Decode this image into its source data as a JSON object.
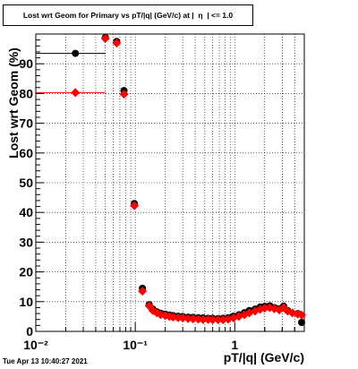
{
  "header": {
    "title": "Lost wrt Geom for Primary vs pT/|q| (GeV/c) at |  η  | <= 1.0"
  },
  "footer": {
    "timestamp": "Tue Apr 13 10:40:27 2021"
  },
  "colors": {
    "series_black": "#000000",
    "series_red": "#ff0000",
    "grid": "#000000"
  },
  "chart_data": {
    "type": "scatter",
    "title": "Lost wrt Geom for Primary vs pT/|q| (GeV/c) at |  η  | <= 1.0",
    "xlabel": "pT/|q| (GeV/c)",
    "ylabel": "Lost wrt Geom (%)",
    "xscale": "log",
    "xlim": [
      0.01,
      5.0
    ],
    "ylim": [
      0,
      100
    ],
    "x_tick_labels": [
      "10⁻²",
      "10⁻¹",
      "1"
    ],
    "y_tick_labels": [
      "0",
      "10",
      "20",
      "30",
      "40",
      "50",
      "60",
      "70",
      "80",
      "90"
    ],
    "grid": true,
    "legend": "none",
    "series": [
      {
        "marker": "circle",
        "color": "#000000",
        "points": [
          {
            "x": 0.025,
            "y": 93.5,
            "xerr": [
              0.01,
              0.05
            ]
          },
          {
            "x": 0.05,
            "y": 98.8
          },
          {
            "x": 0.065,
            "y": 97.5
          },
          {
            "x": 0.077,
            "y": 81.0
          },
          {
            "x": 0.098,
            "y": 43.0
          },
          {
            "x": 0.118,
            "y": 14.5
          },
          {
            "x": 0.138,
            "y": 9.0
          },
          {
            "x": 0.15,
            "y": 7.5
          },
          {
            "x": 0.165,
            "y": 6.6
          },
          {
            "x": 0.18,
            "y": 6.1
          },
          {
            "x": 0.2,
            "y": 5.8
          },
          {
            "x": 0.22,
            "y": 5.5
          },
          {
            "x": 0.24,
            "y": 5.3
          },
          {
            "x": 0.27,
            "y": 5.1
          },
          {
            "x": 0.3,
            "y": 5.0
          },
          {
            "x": 0.34,
            "y": 4.8
          },
          {
            "x": 0.38,
            "y": 4.7
          },
          {
            "x": 0.43,
            "y": 4.6
          },
          {
            "x": 0.48,
            "y": 4.5
          },
          {
            "x": 0.54,
            "y": 4.4
          },
          {
            "x": 0.6,
            "y": 4.4
          },
          {
            "x": 0.68,
            "y": 4.3
          },
          {
            "x": 0.76,
            "y": 4.4
          },
          {
            "x": 0.86,
            "y": 4.6
          },
          {
            "x": 0.97,
            "y": 5.1
          },
          {
            "x": 1.1,
            "y": 5.6
          },
          {
            "x": 1.25,
            "y": 6.3
          },
          {
            "x": 1.4,
            "y": 7.0
          },
          {
            "x": 1.6,
            "y": 7.5
          },
          {
            "x": 1.8,
            "y": 8.2
          },
          {
            "x": 2.0,
            "y": 8.4
          },
          {
            "x": 2.25,
            "y": 8.6
          },
          {
            "x": 2.5,
            "y": 8.0
          },
          {
            "x": 2.8,
            "y": 7.6
          },
          {
            "x": 3.1,
            "y": 8.5
          },
          {
            "x": 3.4,
            "y": 7.0
          },
          {
            "x": 4.3,
            "y": 6.0
          },
          {
            "x": 4.7,
            "y": 3.0
          }
        ]
      },
      {
        "marker": "diamond",
        "color": "#ff0000",
        "points": [
          {
            "x": 0.025,
            "y": 80.3,
            "xerr": [
              0.01,
              0.05
            ]
          },
          {
            "x": 0.05,
            "y": 98.5
          },
          {
            "x": 0.065,
            "y": 97.0
          },
          {
            "x": 0.077,
            "y": 79.8
          },
          {
            "x": 0.098,
            "y": 42.3
          },
          {
            "x": 0.118,
            "y": 13.5
          },
          {
            "x": 0.138,
            "y": 8.6
          },
          {
            "x": 0.15,
            "y": 7.0
          },
          {
            "x": 0.165,
            "y": 6.2
          },
          {
            "x": 0.18,
            "y": 5.6
          },
          {
            "x": 0.2,
            "y": 5.3
          },
          {
            "x": 0.22,
            "y": 5.0
          },
          {
            "x": 0.24,
            "y": 4.8
          },
          {
            "x": 0.27,
            "y": 4.6
          },
          {
            "x": 0.3,
            "y": 4.5
          },
          {
            "x": 0.34,
            "y": 4.3
          },
          {
            "x": 0.38,
            "y": 4.2
          },
          {
            "x": 0.43,
            "y": 4.1
          },
          {
            "x": 0.48,
            "y": 4.0
          },
          {
            "x": 0.54,
            "y": 4.0
          },
          {
            "x": 0.6,
            "y": 3.9
          },
          {
            "x": 0.68,
            "y": 3.9
          },
          {
            "x": 0.76,
            "y": 3.9
          },
          {
            "x": 0.86,
            "y": 4.1
          },
          {
            "x": 0.97,
            "y": 4.5
          },
          {
            "x": 1.1,
            "y": 5.0
          },
          {
            "x": 1.25,
            "y": 5.6
          },
          {
            "x": 1.4,
            "y": 6.2
          },
          {
            "x": 1.6,
            "y": 6.8
          },
          {
            "x": 1.8,
            "y": 7.4
          },
          {
            "x": 2.0,
            "y": 7.8
          },
          {
            "x": 2.25,
            "y": 8.0
          },
          {
            "x": 2.5,
            "y": 7.6
          },
          {
            "x": 2.8,
            "y": 7.2
          },
          {
            "x": 3.1,
            "y": 8.0
          },
          {
            "x": 3.4,
            "y": 6.8
          },
          {
            "x": 3.8,
            "y": 6.2
          },
          {
            "x": 4.3,
            "y": 5.8
          },
          {
            "x": 4.7,
            "y": 5.5
          }
        ]
      }
    ]
  }
}
